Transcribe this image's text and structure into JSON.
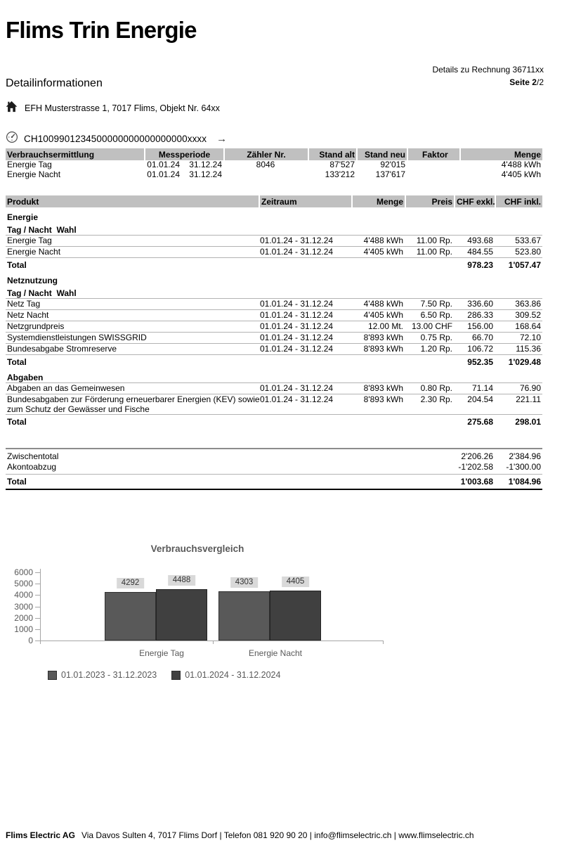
{
  "page": {
    "logo": "Flims Trin Energie",
    "doc_ref": "Details zu Rechnung 36711xx",
    "page_label": "Seite 2",
    "page_suffix": "/2",
    "title": "Detailinformationen",
    "address": "EFH Musterstrasse 1, 7017 Flims, Objekt Nr. 64xx",
    "meter_id": "CH1009901234500000000000000000xxxx",
    "arrow_glyph": "→",
    "icons": {
      "address": "house-icon",
      "meter": "gauge-icon",
      "meter_link": "arrow-right-icon"
    },
    "colors": {
      "table_header": "#c0c0c0",
      "row_line": "#b3b3b3",
      "chart_text": "#595959",
      "label_box": "#d9d9d9"
    }
  },
  "consumption_table": {
    "headers": [
      "Verbrauchsermittlung",
      "Messperiode",
      "Zähler Nr.",
      "Stand alt",
      "Stand neu",
      "Faktor",
      "Menge"
    ],
    "rows": [
      [
        "Energie Tag",
        "01.01.24",
        "31.12.24",
        "8046",
        "87'527",
        "92'015",
        "",
        "4'488 kWh"
      ],
      [
        "Energie Nacht",
        "01.01.24",
        "31.12.24",
        "",
        "133'212",
        "137'617",
        "",
        "4'405 kWh"
      ]
    ]
  },
  "product_table": {
    "headers": [
      "Produkt",
      "Zeitraum",
      "Menge",
      "Preis",
      "CHF exkl.",
      "CHF inkl."
    ],
    "sections": [
      {
        "title": "Energie",
        "subtitle": "Tag / Nacht  Wahl",
        "rows": [
          [
            "Energie Tag",
            "01.01.24 - 31.12.24",
            "4'488 kWh",
            "11.00 Rp.",
            "493.68",
            "533.67"
          ],
          [
            "Energie Nacht",
            "01.01.24 - 31.12.24",
            "4'405 kWh",
            "11.00 Rp.",
            "484.55",
            "523.80"
          ]
        ],
        "total": {
          "label": "Total",
          "exkl": "978.23",
          "inkl": "1'057.47"
        }
      },
      {
        "title": "Netznutzung",
        "subtitle": "Tag / Nacht  Wahl",
        "rows": [
          [
            "Netz Tag",
            "01.01.24 - 31.12.24",
            "4'488 kWh",
            "7.50 Rp.",
            "336.60",
            "363.86"
          ],
          [
            "Netz Nacht",
            "01.01.24 - 31.12.24",
            "4'405 kWh",
            "6.50 Rp.",
            "286.33",
            "309.52"
          ],
          [
            "Netzgrundpreis",
            "01.01.24 - 31.12.24",
            "12.00 Mt.",
            "13.00 CHF",
            "156.00",
            "168.64"
          ],
          [
            "Systemdienstleistungen SWISSGRID",
            "01.01.24 - 31.12.24",
            "8'893 kWh",
            "0.75 Rp.",
            "66.70",
            "72.10"
          ],
          [
            "Bundesabgabe Stromreserve",
            "01.01.24 - 31.12.24",
            "8'893 kWh",
            "1.20 Rp.",
            "106.72",
            "115.36"
          ]
        ],
        "total": {
          "label": "Total",
          "exkl": "952.35",
          "inkl": "1'029.48"
        }
      },
      {
        "title": "Abgaben",
        "subtitle": null,
        "rows": [
          [
            "Abgaben an das Gemeinwesen",
            "01.01.24 - 31.12.24",
            "8'893 kWh",
            "0.80 Rp.",
            "71.14",
            "76.90"
          ],
          [
            "Bundesabgaben zur Förderung erneuerbarer Energien (KEV) sowie zum Schutz der Gewässer und Fische",
            "01.01.24 - 31.12.24",
            "8'893 kWh",
            "2.30 Rp.",
            "204.54",
            "221.11"
          ]
        ],
        "total": {
          "label": "Total",
          "exkl": "275.68",
          "inkl": "298.01"
        }
      }
    ]
  },
  "summary": {
    "rows": [
      {
        "label": "Zwischentotal",
        "exkl": "2'206.26",
        "inkl": "2'384.96"
      },
      {
        "label": "Akontoabzug",
        "exkl": "-1'202.58",
        "inkl": "-1'300.00"
      }
    ],
    "total": {
      "label": "Total",
      "exkl": "1'003.68",
      "inkl": "1'084.96"
    }
  },
  "chart_data": {
    "type": "bar",
    "title": "Verbrauchsvergleich",
    "categories": [
      "Energie Tag",
      "Energie Nacht"
    ],
    "series": [
      {
        "name": "01.01.2023 - 31.12.2023",
        "values": [
          4292,
          4303
        ],
        "color": "#595959"
      },
      {
        "name": "01.01.2024 - 31.12.2024",
        "values": [
          4488,
          4405
        ],
        "color": "#404040"
      }
    ],
    "ylabel": "",
    "xlabel": "",
    "ylim": [
      0,
      6000
    ],
    "yticks": [
      0,
      1000,
      2000,
      3000,
      4000,
      5000,
      6000
    ],
    "grid": false,
    "data_labels": true,
    "legend_position": "bottom"
  },
  "footer": {
    "company": "Flims Electric AG",
    "info": "Via Davos Sulten 4, 7017 Flims Dorf | Telefon 081 920 90 20 | info@flimselectric.ch | www.flimselectric.ch"
  }
}
